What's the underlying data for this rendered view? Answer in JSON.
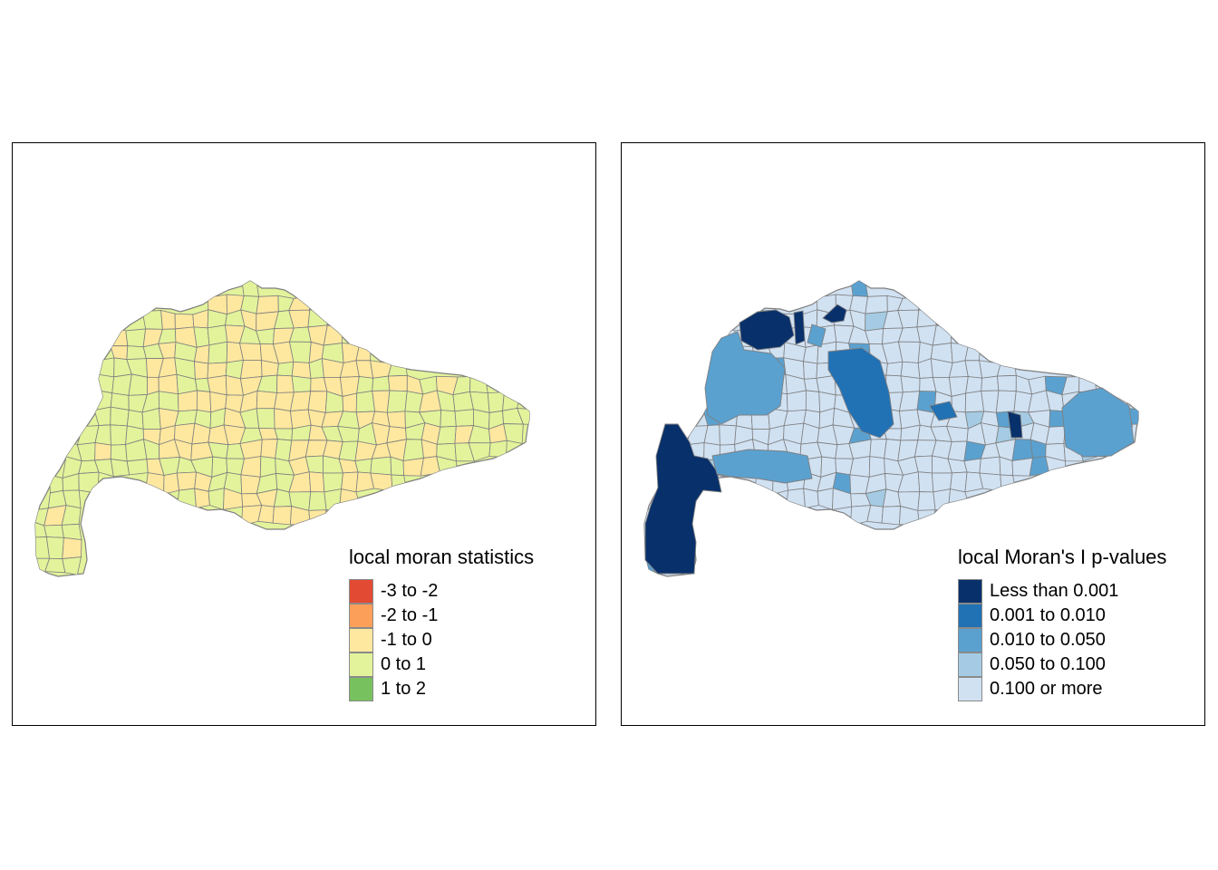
{
  "maps": [
    {
      "legend_title": "local moran statistics",
      "classes": [
        {
          "label": "-3 to -2",
          "color": "#e34a33"
        },
        {
          "label": "-2 to -1",
          "color": "#fc9f59"
        },
        {
          "label": "-1 to 0",
          "color": "#fee89f"
        },
        {
          "label": "0 to 1",
          "color": "#e2f39b"
        },
        {
          "label": "1 to 2",
          "color": "#78c15f"
        }
      ],
      "base_color": "#e2f39b",
      "highlight_color": "#fee89f"
    },
    {
      "legend_title": "local Moran's I p-values",
      "classes": [
        {
          "label": "Less than 0.001",
          "color": "#08306b"
        },
        {
          "label": "0.001 to 0.010",
          "color": "#2171b5"
        },
        {
          "label": "0.010 to 0.050",
          "color": "#5aa1d0"
        },
        {
          "label": "0.050 to 0.100",
          "color": "#a4cbe3"
        },
        {
          "label": "0.100 or more",
          "color": "#d0e1f2"
        }
      ],
      "base_color": "#d0e1f2"
    }
  ],
  "border_color": "#7f7f7f"
}
